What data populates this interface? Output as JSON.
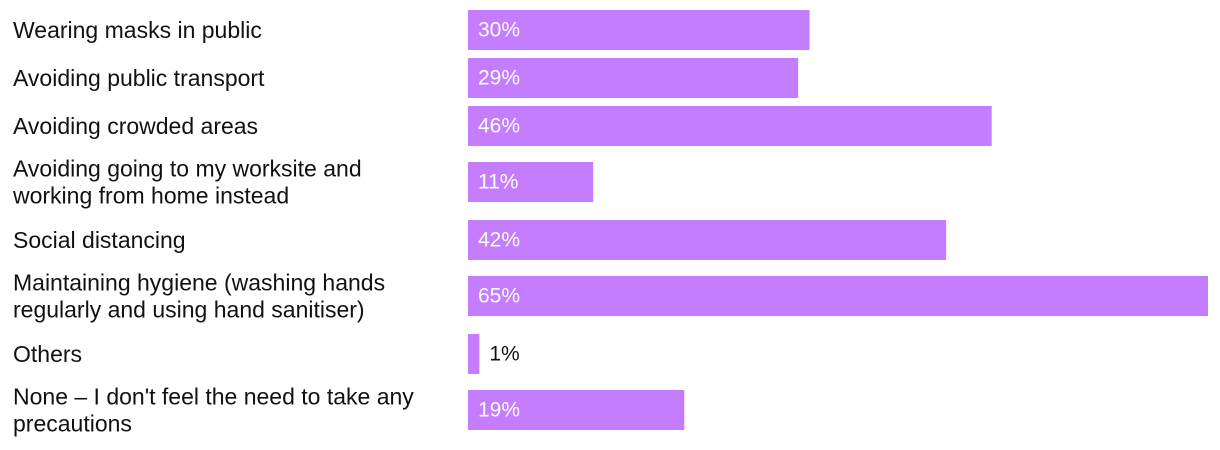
{
  "chart_data": {
    "type": "bar",
    "orientation": "horizontal",
    "categories": [
      [
        "Wearing masks in public"
      ],
      [
        "Avoiding public transport"
      ],
      [
        "Avoiding crowded areas"
      ],
      [
        "Avoiding going to my worksite and",
        "working from home instead"
      ],
      [
        "Social distancing"
      ],
      [
        "Maintaining hygiene (washing hands",
        "regularly and using hand sanitiser)"
      ],
      [
        "Others"
      ],
      [
        "None – I don't feel the need to take any",
        "precautions"
      ]
    ],
    "values": [
      30,
      29,
      46,
      11,
      42,
      65,
      1,
      19
    ],
    "value_labels": [
      "30%",
      "29%",
      "46%",
      "11%",
      "42%",
      "65%",
      "1%",
      "19%"
    ],
    "unit": "%",
    "xlim": [
      0,
      65
    ],
    "grid": false,
    "legend": "none",
    "colors": {
      "bar": "#c47dff",
      "label_inside": "#ffffff",
      "label_outside": "#111111",
      "text": "#111111"
    }
  }
}
